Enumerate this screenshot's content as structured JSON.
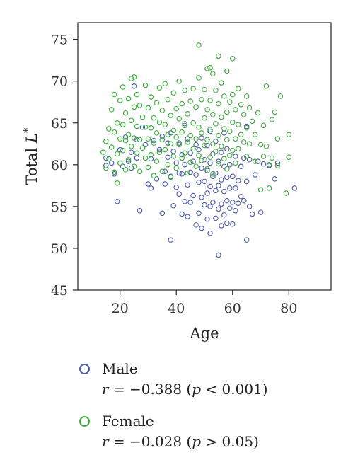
{
  "chart_data": {
    "type": "scatter",
    "title": "",
    "xlabel": "Age",
    "ylabel": "Total L*",
    "ylabel_parts": {
      "prefix": "Total ",
      "variable": "L",
      "superscript": "*"
    },
    "xlim": [
      5,
      95
    ],
    "ylim": [
      45,
      77
    ],
    "xticks": [
      20,
      40,
      60,
      80
    ],
    "yticks": [
      45,
      50,
      55,
      60,
      65,
      70,
      75
    ],
    "grid": false,
    "legend_position": "below",
    "series": [
      {
        "name": "Male",
        "color": "#4a5aaa",
        "marker": "open-circle",
        "statistic": {
          "r_label": "r",
          "r_value": "−0.388",
          "p_label": "p",
          "p_relation": "<",
          "p_value": "0.001"
        },
        "points": [
          [
            15,
            60.8
          ],
          [
            15,
            59.9
          ],
          [
            17,
            60.2
          ],
          [
            18,
            59.1
          ],
          [
            18,
            58.9
          ],
          [
            19,
            55.6
          ],
          [
            20,
            61.8
          ],
          [
            21,
            59.8
          ],
          [
            22,
            63.3
          ],
          [
            23,
            60.4
          ],
          [
            24,
            61.5
          ],
          [
            24,
            59.6
          ],
          [
            25,
            69.4
          ],
          [
            26,
            63.0
          ],
          [
            26,
            60.8
          ],
          [
            27,
            54.5
          ],
          [
            28,
            64.5
          ],
          [
            29,
            62.4
          ],
          [
            30,
            57.7
          ],
          [
            31,
            57.2
          ],
          [
            31,
            60.7
          ],
          [
            32,
            62.9
          ],
          [
            33,
            58.3
          ],
          [
            34,
            61.8
          ],
          [
            35,
            54.2
          ],
          [
            35,
            63.4
          ],
          [
            36,
            57.7
          ],
          [
            36,
            59.2
          ],
          [
            37,
            60.9
          ],
          [
            37,
            62.6
          ],
          [
            38,
            51.0
          ],
          [
            38,
            58.6
          ],
          [
            38,
            63.8
          ],
          [
            39,
            55.1
          ],
          [
            39,
            61.6
          ],
          [
            40,
            57.3
          ],
          [
            40,
            60.2
          ],
          [
            41,
            56.5
          ],
          [
            41,
            59.0
          ],
          [
            41,
            62.6
          ],
          [
            42,
            54.1
          ],
          [
            42,
            58.9
          ],
          [
            42,
            61.2
          ],
          [
            43,
            55.6
          ],
          [
            43,
            60.0
          ],
          [
            43,
            64.9
          ],
          [
            44,
            53.8
          ],
          [
            44,
            57.6
          ],
          [
            44,
            63.1
          ],
          [
            45,
            55.5
          ],
          [
            45,
            59.1
          ],
          [
            45,
            61.4
          ],
          [
            46,
            56.3
          ],
          [
            46,
            60.4
          ],
          [
            47,
            52.8
          ],
          [
            47,
            58.8
          ],
          [
            47,
            62.4
          ],
          [
            48,
            54.2
          ],
          [
            48,
            57.9
          ],
          [
            48,
            61.8
          ],
          [
            49,
            52.4
          ],
          [
            49,
            56.1
          ],
          [
            49,
            59.6
          ],
          [
            49,
            63.2
          ],
          [
            50,
            55.2
          ],
          [
            50,
            58.0
          ],
          [
            50,
            60.6
          ],
          [
            51,
            53.5
          ],
          [
            51,
            56.6
          ],
          [
            51,
            59.3
          ],
          [
            51,
            62.3
          ],
          [
            52,
            51.8
          ],
          [
            52,
            55.0
          ],
          [
            52,
            57.4
          ],
          [
            52,
            60.2
          ],
          [
            52,
            64.0
          ],
          [
            53,
            55.5
          ],
          [
            53,
            58.6
          ],
          [
            53,
            61.3
          ],
          [
            54,
            53.6
          ],
          [
            54,
            56.9
          ],
          [
            54,
            59.0
          ],
          [
            54,
            62.8
          ],
          [
            55,
            49.2
          ],
          [
            55,
            54.7
          ],
          [
            55,
            57.5
          ],
          [
            55,
            60.4
          ],
          [
            56,
            52.7
          ],
          [
            56,
            55.3
          ],
          [
            56,
            58.2
          ],
          [
            56,
            61.5
          ],
          [
            57,
            54.0
          ],
          [
            57,
            56.8
          ],
          [
            57,
            59.8
          ],
          [
            57,
            63.8
          ],
          [
            58,
            53.0
          ],
          [
            58,
            55.7
          ],
          [
            58,
            58.5
          ],
          [
            58,
            61.9
          ],
          [
            59,
            54.8
          ],
          [
            59,
            57.2
          ],
          [
            59,
            60.0
          ],
          [
            60,
            52.9
          ],
          [
            60,
            55.5
          ],
          [
            60,
            58.6
          ],
          [
            61,
            54.5
          ],
          [
            61,
            57.2
          ],
          [
            61,
            61.0
          ],
          [
            62,
            55.4
          ],
          [
            62,
            58.1
          ],
          [
            63,
            56.2
          ],
          [
            63,
            59.8
          ],
          [
            64,
            55.7
          ],
          [
            64,
            60.8
          ],
          [
            65,
            51.0
          ],
          [
            65,
            58.0
          ],
          [
            65,
            64.6
          ],
          [
            66,
            55.0
          ],
          [
            66,
            60.6
          ],
          [
            67,
            54.1
          ],
          [
            68,
            58.8
          ],
          [
            69,
            60.4
          ],
          [
            70,
            54.3
          ],
          [
            71,
            60.1
          ],
          [
            73,
            59.9
          ],
          [
            75,
            58.3
          ],
          [
            76,
            60.2
          ],
          [
            82,
            57.2
          ]
        ]
      },
      {
        "name": "Female",
        "color": "#3caa3c",
        "marker": "open-circle",
        "statistic": {
          "r_label": "r",
          "r_value": "−0.028",
          "p_label": "p",
          "p_relation": ">",
          "p_value": "0.05"
        },
        "points": [
          [
            14,
            61.5
          ],
          [
            15,
            62.8
          ],
          [
            15,
            59.6
          ],
          [
            16,
            64.3
          ],
          [
            16,
            60.7
          ],
          [
            17,
            66.6
          ],
          [
            17,
            62.1
          ],
          [
            18,
            68.4
          ],
          [
            18,
            63.9
          ],
          [
            18,
            59.1
          ],
          [
            19,
            65.0
          ],
          [
            19,
            61.3
          ],
          [
            19,
            57.8
          ],
          [
            20,
            67.7
          ],
          [
            20,
            63.1
          ],
          [
            20,
            60.2
          ],
          [
            21,
            69.3
          ],
          [
            21,
            64.8
          ],
          [
            21,
            61.7
          ],
          [
            22,
            66.2
          ],
          [
            22,
            62.9
          ],
          [
            22,
            59.4
          ],
          [
            23,
            67.9
          ],
          [
            23,
            63.6
          ],
          [
            23,
            60.6
          ],
          [
            24,
            70.3
          ],
          [
            24,
            65.3
          ],
          [
            24,
            62.2
          ],
          [
            25,
            70.5
          ],
          [
            25,
            66.9
          ],
          [
            25,
            63.2
          ],
          [
            25,
            59.8
          ],
          [
            26,
            68.4
          ],
          [
            26,
            64.6
          ],
          [
            26,
            61.4
          ],
          [
            27,
            67.1
          ],
          [
            27,
            63.0
          ],
          [
            27,
            59.2
          ],
          [
            28,
            65.7
          ],
          [
            28,
            62.0
          ],
          [
            29,
            69.5
          ],
          [
            29,
            64.5
          ],
          [
            29,
            60.8
          ],
          [
            30,
            66.8
          ],
          [
            30,
            63.1
          ],
          [
            30,
            59.7
          ],
          [
            31,
            68.1
          ],
          [
            31,
            64.4
          ],
          [
            31,
            61.2
          ],
          [
            32,
            65.6
          ],
          [
            32,
            62.6
          ],
          [
            32,
            58.7
          ],
          [
            33,
            67.4
          ],
          [
            33,
            63.8
          ],
          [
            33,
            60.4
          ],
          [
            34,
            69.2
          ],
          [
            34,
            65.1
          ],
          [
            34,
            61.5
          ],
          [
            35,
            66.5
          ],
          [
            35,
            63.0
          ],
          [
            35,
            59.2
          ],
          [
            36,
            69.7
          ],
          [
            36,
            64.8
          ],
          [
            36,
            61.8
          ],
          [
            37,
            67.8
          ],
          [
            37,
            63.6
          ],
          [
            37,
            60.0
          ],
          [
            38,
            65.9
          ],
          [
            38,
            62.5
          ],
          [
            38,
            58.5
          ],
          [
            39,
            68.6
          ],
          [
            39,
            64.1
          ],
          [
            39,
            61.0
          ],
          [
            40,
            66.7
          ],
          [
            40,
            63.3
          ],
          [
            40,
            59.6
          ],
          [
            41,
            70.0
          ],
          [
            41,
            65.5
          ],
          [
            41,
            62.4
          ],
          [
            42,
            67.3
          ],
          [
            42,
            63.9
          ],
          [
            42,
            60.8
          ],
          [
            43,
            68.9
          ],
          [
            43,
            64.7
          ],
          [
            43,
            61.4
          ],
          [
            44,
            66.1
          ],
          [
            44,
            62.7
          ],
          [
            44,
            59.0
          ],
          [
            45,
            67.6
          ],
          [
            45,
            63.5
          ],
          [
            45,
            60.3
          ],
          [
            46,
            69.1
          ],
          [
            46,
            65.0
          ],
          [
            46,
            61.9
          ],
          [
            47,
            66.9
          ],
          [
            47,
            63.1
          ],
          [
            47,
            59.8
          ],
          [
            48,
            74.3
          ],
          [
            48,
            70.4
          ],
          [
            48,
            64.5
          ],
          [
            48,
            61.1
          ],
          [
            49,
            67.8
          ],
          [
            49,
            63.8
          ],
          [
            49,
            60.5
          ],
          [
            50,
            69.0
          ],
          [
            50,
            65.6
          ],
          [
            50,
            62.3
          ],
          [
            51,
            71.5
          ],
          [
            51,
            66.6
          ],
          [
            51,
            63.0
          ],
          [
            51,
            59.5
          ],
          [
            52,
            71.6
          ],
          [
            52,
            67.7
          ],
          [
            52,
            64.2
          ],
          [
            52,
            60.9
          ],
          [
            53,
            70.9
          ],
          [
            53,
            66.0
          ],
          [
            53,
            62.5
          ],
          [
            53,
            58.9
          ],
          [
            54,
            68.9
          ],
          [
            54,
            64.9
          ],
          [
            54,
            61.6
          ],
          [
            55,
            73.0
          ],
          [
            55,
            67.3
          ],
          [
            55,
            63.5
          ],
          [
            55,
            60.1
          ],
          [
            56,
            69.8
          ],
          [
            56,
            65.7
          ],
          [
            56,
            62.2
          ],
          [
            57,
            68.2
          ],
          [
            57,
            64.3
          ],
          [
            57,
            60.7
          ],
          [
            58,
            71.2
          ],
          [
            58,
            66.3
          ],
          [
            58,
            63.0
          ],
          [
            58,
            59.5
          ],
          [
            59,
            67.5
          ],
          [
            59,
            64.0
          ],
          [
            59,
            61.1
          ],
          [
            60,
            72.7
          ],
          [
            60,
            68.4
          ],
          [
            60,
            65.1
          ],
          [
            60,
            61.7
          ],
          [
            61,
            66.6
          ],
          [
            61,
            63.1
          ],
          [
            61,
            60.2
          ],
          [
            62,
            69.1
          ],
          [
            62,
            64.8
          ],
          [
            62,
            61.9
          ],
          [
            63,
            67.2
          ],
          [
            63,
            63.6
          ],
          [
            64,
            66.0
          ],
          [
            64,
            62.7
          ],
          [
            65,
            68.2
          ],
          [
            65,
            64.4
          ],
          [
            65,
            61.0
          ],
          [
            66,
            66.8
          ],
          [
            66,
            62.5
          ],
          [
            67,
            65.2
          ],
          [
            68,
            63.6
          ],
          [
            68,
            60.4
          ],
          [
            69,
            66.2
          ],
          [
            70,
            62.4
          ],
          [
            70,
            57.0
          ],
          [
            71,
            64.7
          ],
          [
            71,
            61.0
          ],
          [
            72,
            69.4
          ],
          [
            72,
            62.2
          ],
          [
            73,
            60.0
          ],
          [
            73,
            57.2
          ],
          [
            74,
            65.4
          ],
          [
            74,
            60.8
          ],
          [
            75,
            66.3
          ],
          [
            76,
            59.9
          ],
          [
            76,
            63.1
          ],
          [
            77,
            68.2
          ],
          [
            79,
            56.6
          ],
          [
            80,
            63.6
          ],
          [
            80,
            60.9
          ]
        ]
      }
    ]
  }
}
